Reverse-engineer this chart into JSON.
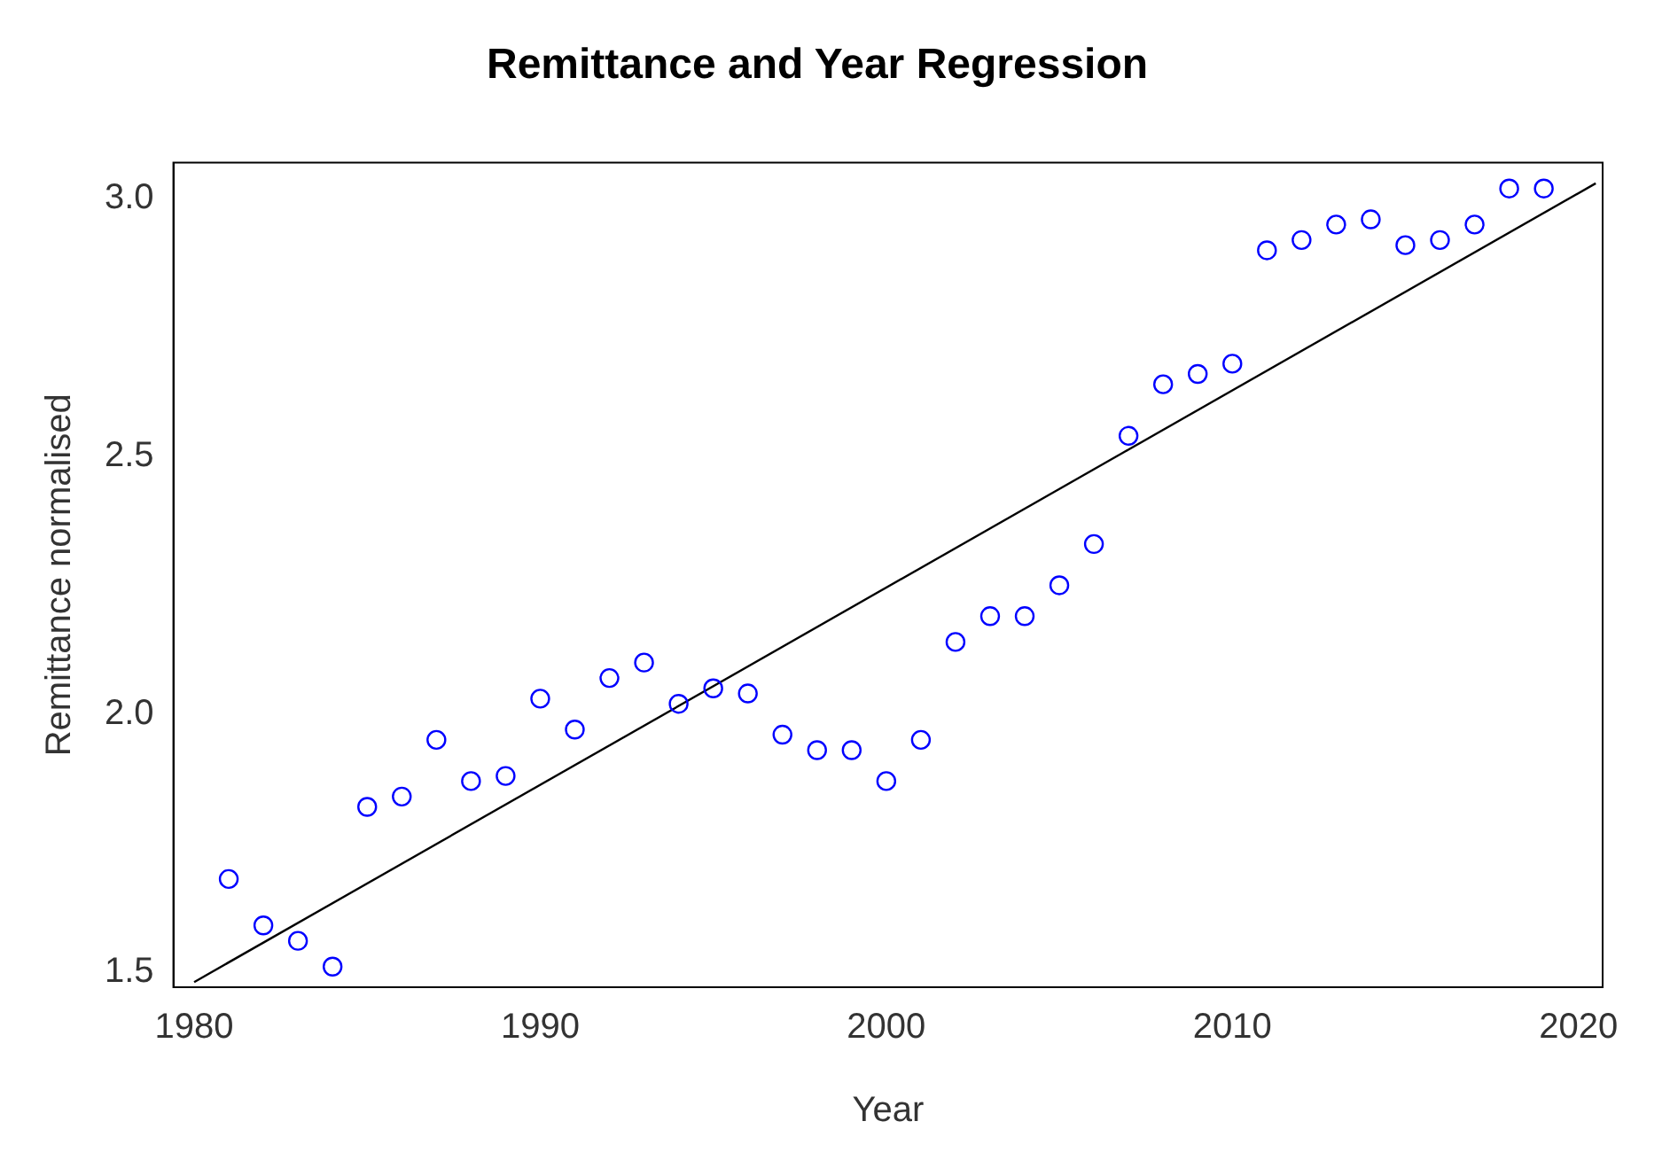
{
  "chart_data": {
    "type": "scatter",
    "title": "Remittance and Year Regression",
    "xlabel": "Year",
    "ylabel": "Remittance normalised",
    "x": [
      1981,
      1982,
      1983,
      1984,
      1985,
      1986,
      1987,
      1988,
      1989,
      1990,
      1991,
      1992,
      1993,
      1994,
      1995,
      1996,
      1997,
      1998,
      1999,
      2000,
      2001,
      2002,
      2003,
      2004,
      2005,
      2006,
      2007,
      2008,
      2009,
      2010,
      2011,
      2012,
      2013,
      2014,
      2015,
      2016,
      2017,
      2018,
      2019
    ],
    "series": [
      {
        "type": "scatter",
        "color": "#0000ff",
        "marker": "circle",
        "values": [
          1.68,
          1.59,
          1.56,
          1.51,
          1.82,
          1.84,
          1.95,
          1.87,
          1.88,
          2.03,
          1.97,
          2.07,
          2.1,
          2.02,
          2.05,
          2.04,
          1.96,
          1.93,
          1.93,
          1.87,
          1.95,
          2.14,
          2.19,
          2.19,
          2.25,
          2.33,
          2.54,
          2.64,
          2.66,
          2.68,
          2.9,
          2.92,
          2.95,
          2.96,
          2.91,
          2.92,
          2.95,
          3.02,
          3.02
        ]
      },
      {
        "type": "line",
        "color": "#000000",
        "marker": "none",
        "line_style": "solid",
        "x": [
          1980,
          2020.5
        ],
        "values": [
          1.48,
          3.03
        ]
      }
    ],
    "xlim": [
      1979.4,
      2020.7
    ],
    "ylim": [
      1.47,
      3.07
    ],
    "xticks": [
      1980,
      1990,
      2000,
      2010,
      2020
    ],
    "yticks": [
      1.5,
      {
        "value": 2,
        "label": "2.0"
      },
      2.5,
      {
        "value": 3,
        "label": "3.0"
      }
    ],
    "grid": false,
    "legend": false
  }
}
